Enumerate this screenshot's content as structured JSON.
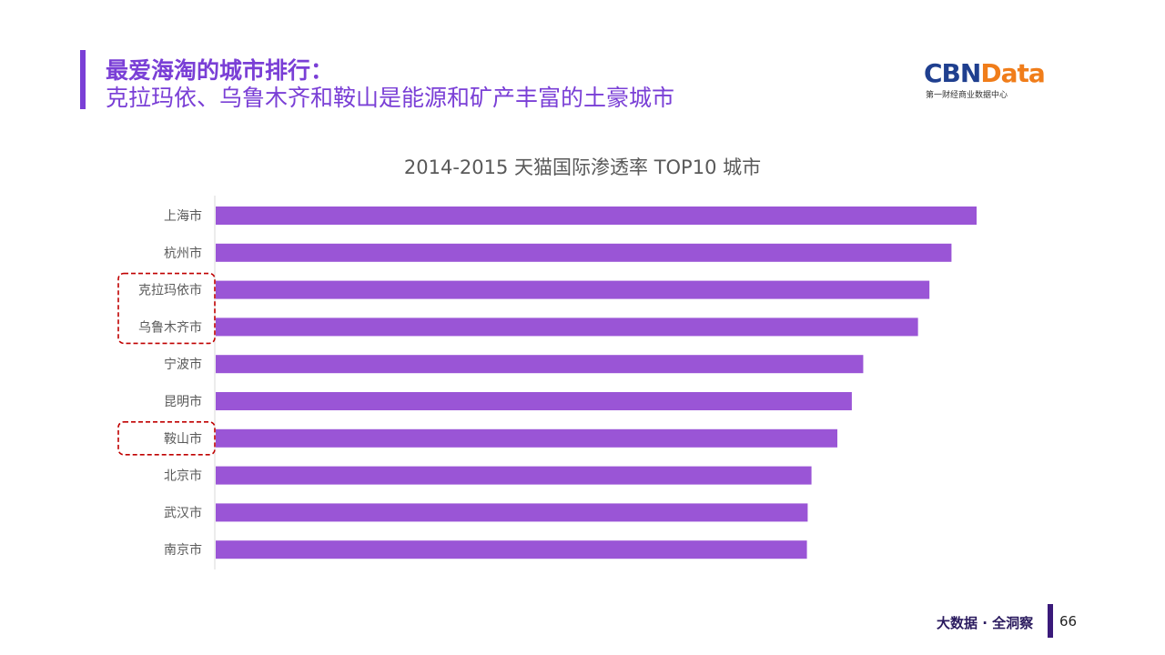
{
  "header": {
    "title_line1": "最爱海淘的城市排行：",
    "title_line2": "克拉玛依、乌鲁木齐和鞍山是能源和矿产丰富的土豪城市"
  },
  "logo": {
    "part1": "CBN",
    "part2": "Data",
    "subtitle": "第一财经商业数据中心",
    "colors": {
      "part1": "#1f3f8f",
      "part2": "#f07d1a"
    }
  },
  "chart_data": {
    "type": "bar",
    "orientation": "horizontal",
    "title": "2014-2015 天猫国际渗透率 TOP10 城市",
    "categories": [
      "上海市",
      "杭州市",
      "克拉玛依市",
      "乌鲁木齐市",
      "宁波市",
      "昆明市",
      "鞍山市",
      "北京市",
      "武汉市",
      "南京市"
    ],
    "values": [
      100,
      96.7,
      93.8,
      92.3,
      85.1,
      83.6,
      81.7,
      78.3,
      77.8,
      77.7
    ],
    "highlighted": [
      "克拉玛依市",
      "乌鲁木齐市",
      "鞍山市"
    ],
    "xlim": [
      0,
      100
    ],
    "bar_color": "#9a55d6",
    "highlight_color": "#c00000",
    "grid": false,
    "legend": "none"
  },
  "footer": {
    "text": "大数据 · 全洞察",
    "page": "66"
  }
}
